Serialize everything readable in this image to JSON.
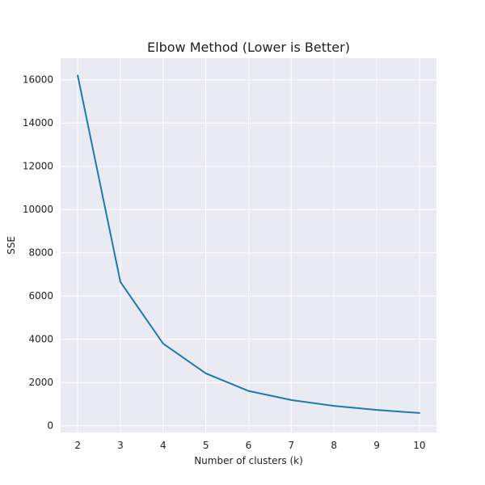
{
  "chart_data": {
    "type": "line",
    "title": "Elbow Method (Lower is Better)",
    "xlabel": "Number of clusters (k)",
    "ylabel": "SSE",
    "x": [
      2,
      3,
      4,
      5,
      6,
      7,
      8,
      9,
      10
    ],
    "series": [
      {
        "values": [
          16200,
          6650,
          3800,
          2420,
          1610,
          1190,
          920,
          730,
          590
        ]
      }
    ],
    "xlim": [
      1.6,
      10.4
    ],
    "ylim": [
      -310,
      17000
    ],
    "xticks": [
      2,
      3,
      4,
      5,
      6,
      7,
      8,
      9,
      10
    ],
    "yticks": [
      0,
      2000,
      4000,
      6000,
      8000,
      10000,
      12000,
      14000,
      16000
    ],
    "grid": true,
    "colors": {
      "background": "#EAEAF2",
      "grid": "#FFFFFF",
      "line": "#1F77B4"
    }
  }
}
